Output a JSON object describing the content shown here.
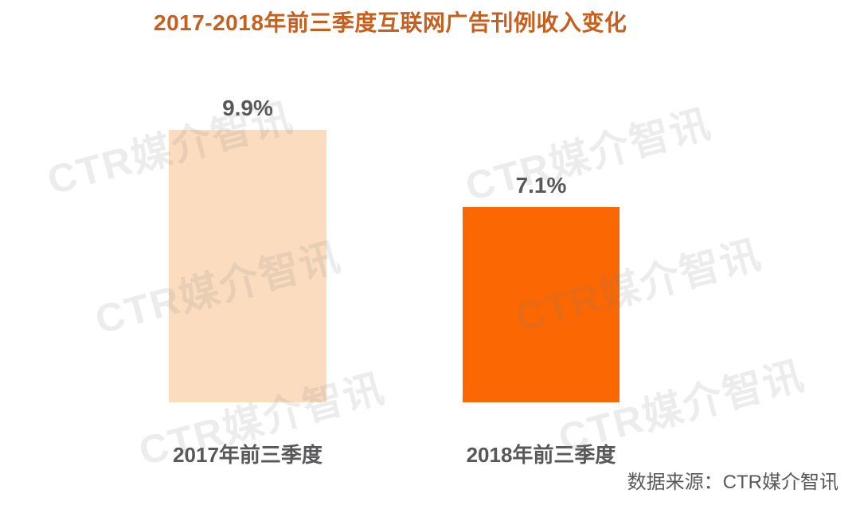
{
  "title": "2017-2018年前三季度互联网广告刊例收入变化",
  "source": "数据来源：CTR媒介智讯",
  "watermark": {
    "text": "CTR媒介智讯"
  },
  "colors": {
    "title": "#C75F1E",
    "bar_2017": "#FBDCBE",
    "bar_2018": "#FB6702",
    "label": "#58585A",
    "watermark": "rgba(128,128,128,0.15)"
  },
  "chart_data": {
    "type": "bar",
    "categories": [
      "2017年前三季度",
      "2018年前三季度"
    ],
    "values": [
      9.9,
      7.1
    ],
    "value_labels": [
      "9.9%",
      "7.1%"
    ],
    "title": "2017-2018年前三季度互联网广告刊例收入变化",
    "xlabel": "",
    "ylabel": "",
    "ylim": [
      0,
      9.9
    ],
    "grid": false,
    "legend": false,
    "source": "数据来源：CTR媒介智讯"
  }
}
